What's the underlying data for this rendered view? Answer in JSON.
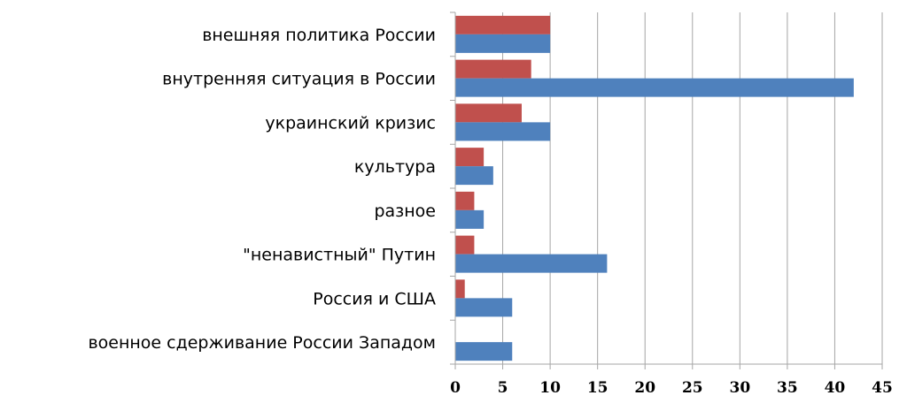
{
  "chart_data": {
    "type": "bar",
    "orientation": "horizontal",
    "categories": [
      "внешняя политика России",
      "внутренняя ситуация в России",
      "украинский кризис",
      "культура",
      "разное",
      "\"ненавистный\" Путин",
      "Россия и США",
      "военное сдерживание России Западом"
    ],
    "series": [
      {
        "values": [
          10,
          8,
          7,
          3,
          2,
          2,
          1,
          0
        ],
        "color": "#C0504D"
      },
      {
        "values": [
          10,
          42,
          10,
          4,
          3,
          16,
          6,
          6
        ],
        "color": "#4F81BD"
      }
    ],
    "xlim": [
      0,
      45
    ],
    "xticks": [
      0,
      5,
      10,
      15,
      20,
      25,
      30,
      35,
      40,
      45
    ],
    "grid": "vertical",
    "legend": "none"
  }
}
